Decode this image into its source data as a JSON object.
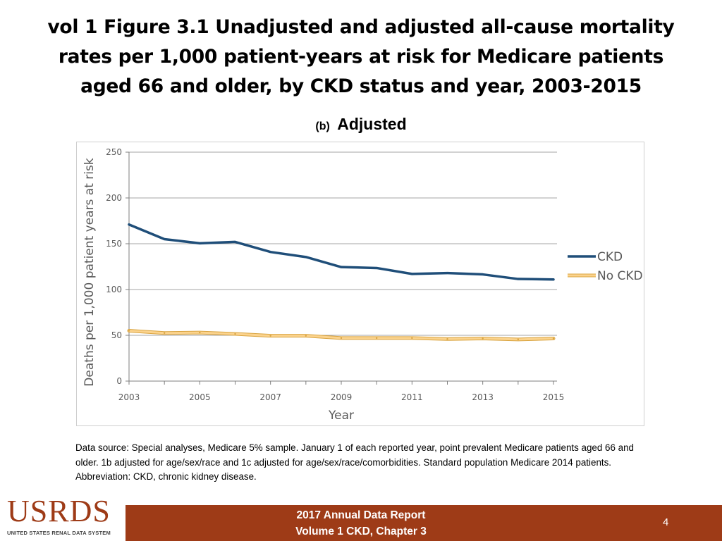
{
  "slide": {
    "title_lines": [
      "vol 1 Figure 3.1 Unadjusted and adjusted all-cause mortality",
      "rates per 1,000 patient-years at risk for Medicare patients",
      "aged 66 and older, by CKD status and year, 2003-2015"
    ],
    "panel_tag": "(b)",
    "panel_name": "Adjusted",
    "source_text": "Data source: Special analyses, Medicare 5% sample. January 1 of each reported year, point prevalent Medicare patients aged 66 and older. 1b adjusted for age/sex/race and 1c adjusted for age/sex/race/comorbidities. Standard population Medicare 2014 patients. Abbreviation: CKD, chronic kidney disease.",
    "footer": {
      "logo": "USRDS",
      "logo_subtitle": "UNITED STATES RENAL DATA SYSTEM",
      "line1": "2017 Annual Data Report",
      "line2": "Volume 1 CKD, Chapter 3",
      "page_number": "4"
    }
  },
  "colors": {
    "ckd": "#1f4e79",
    "no_ckd_fill": "#fbd38d",
    "no_ckd_edge": "#d9a441",
    "grid": "#a6a6a6",
    "footer_bg": "#9e3b17"
  },
  "chart_data": {
    "type": "line",
    "title": "Adjusted",
    "xlabel": "Year",
    "ylabel": "Deaths per 1,000 patient years at risk",
    "x": [
      2003,
      2004,
      2005,
      2006,
      2007,
      2008,
      2009,
      2010,
      2011,
      2012,
      2013,
      2014,
      2015
    ],
    "xticks": [
      2003,
      2005,
      2007,
      2009,
      2011,
      2013,
      2015
    ],
    "yticks": [
      0,
      50,
      100,
      150,
      200,
      250
    ],
    "xlim": [
      2003,
      2015
    ],
    "ylim": [
      0,
      250
    ],
    "grid": true,
    "legend_position": "right",
    "series": [
      {
        "name": "CKD",
        "values": [
          171,
          155,
          150.5,
          152,
          141,
          135.5,
          124.5,
          123.5,
          117,
          118,
          116.5,
          111.5,
          111
        ]
      },
      {
        "name": "No CKD",
        "values": [
          55,
          52.5,
          53,
          51.5,
          49.5,
          49.5,
          47,
          47,
          47,
          46,
          46.5,
          45.5,
          46.5
        ]
      }
    ]
  }
}
